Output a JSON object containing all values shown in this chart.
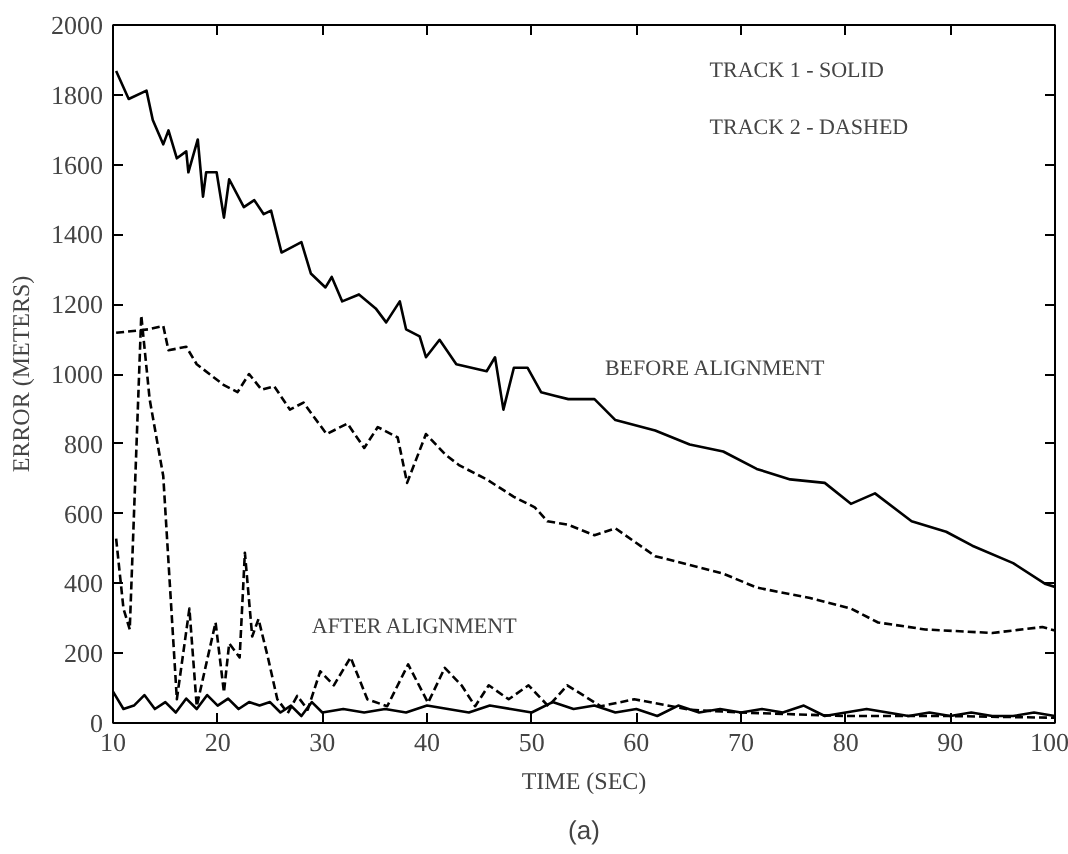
{
  "chart_data": {
    "type": "line",
    "xlabel": "TIME (SEC)",
    "ylabel": "ERROR (METERS)",
    "xlim": [
      10,
      100
    ],
    "ylim": [
      0,
      2000
    ],
    "xticks": [
      10,
      20,
      30,
      40,
      50,
      60,
      70,
      80,
      90,
      100
    ],
    "yticks": [
      0,
      200,
      400,
      600,
      800,
      1000,
      1200,
      1400,
      1600,
      1800,
      2000
    ],
    "grid": false,
    "marker": "none",
    "annotations": [
      "TRACK 1 - SOLID",
      "TRACK 2 - DASHED",
      "BEFORE ALIGNMENT",
      "AFTER ALIGNMENT",
      "(a)"
    ],
    "series": [
      {
        "color": "#000000",
        "line_style": "solid",
        "x": [
          10.3,
          11.5,
          13.2,
          13.8,
          14.8,
          15.3,
          16.1,
          17.0,
          17.2,
          18.1,
          18.6,
          18.9,
          19.9,
          20.6,
          21.1,
          22.5,
          23.5,
          24.4,
          25.1,
          26.1,
          28.0,
          28.9,
          30.3,
          30.9,
          31.9,
          33.5,
          35.1,
          36.1,
          37.4,
          38.0,
          39.3,
          39.9,
          41.2,
          42.8,
          45.7,
          46.5,
          47.3,
          48.3,
          49.6,
          50.9,
          52.2,
          53.5,
          56.0,
          58.0,
          61.8,
          65.1,
          68.3,
          71.5,
          74.7,
          78.0,
          80.5,
          82.8,
          86.3,
          89.6,
          92.1,
          96.0,
          99.1,
          100
        ],
        "values": [
          1868,
          1788,
          1812,
          1728,
          1658,
          1698,
          1618,
          1638,
          1578,
          1672,
          1508,
          1578,
          1578,
          1448,
          1558,
          1478,
          1498,
          1458,
          1468,
          1348,
          1378,
          1288,
          1248,
          1278,
          1208,
          1228,
          1188,
          1148,
          1208,
          1128,
          1108,
          1048,
          1098,
          1028,
          1008,
          1048,
          898,
          1018,
          1018,
          948,
          938,
          928,
          928,
          868,
          838,
          798,
          778,
          728,
          698,
          688,
          628,
          658,
          578,
          548,
          508,
          458,
          398,
          390
        ]
      },
      {
        "color": "#000000",
        "line_style": "dashed",
        "x": [
          10.3,
          13.4,
          14.8,
          15.3,
          17.0,
          18.0,
          20.6,
          21.9,
          23.0,
          24.2,
          25.4,
          26.9,
          28.2,
          30.4,
          32.4,
          34.0,
          35.3,
          37.2,
          38.1,
          39.9,
          41.8,
          43.1,
          45.7,
          48.3,
          50.3,
          51.5,
          53.5,
          56.0,
          58.0,
          61.8,
          68.3,
          71.5,
          76.6,
          80.5,
          83.1,
          87.6,
          94.0,
          98.8,
          100
        ],
        "values": [
          1118,
          1128,
          1138,
          1068,
          1078,
          1028,
          968,
          948,
          1000,
          955,
          965,
          898,
          918,
          828,
          858,
          788,
          848,
          818,
          688,
          828,
          768,
          738,
          698,
          648,
          618,
          578,
          568,
          538,
          558,
          478,
          428,
          388,
          358,
          328,
          288,
          268,
          258,
          275,
          265
        ]
      },
      {
        "color": "#000000",
        "line_style": "solid",
        "x": [
          10,
          11,
          12,
          13,
          14,
          15,
          16,
          17,
          18,
          19,
          20,
          21,
          22,
          23,
          24,
          25,
          26,
          27,
          28,
          29,
          30,
          32,
          34,
          36,
          38,
          40,
          42,
          44,
          46,
          48,
          50,
          52,
          54,
          56,
          58,
          60,
          62,
          64,
          66,
          68,
          70,
          72,
          74,
          76,
          78,
          80,
          82,
          84,
          86,
          88,
          90,
          92,
          94,
          96,
          98,
          100
        ],
        "values": [
          90,
          40,
          50,
          80,
          40,
          60,
          30,
          70,
          40,
          80,
          50,
          70,
          40,
          60,
          50,
          60,
          30,
          50,
          20,
          60,
          30,
          40,
          30,
          40,
          30,
          50,
          40,
          30,
          50,
          40,
          30,
          60,
          40,
          50,
          30,
          40,
          20,
          50,
          30,
          40,
          30,
          40,
          30,
          50,
          20,
          30,
          40,
          30,
          20,
          30,
          20,
          30,
          20,
          20,
          30,
          20
        ]
      },
      {
        "color": "#000000",
        "line_style": "dashed",
        "x": [
          10.3,
          11.0,
          11.6,
          12.7,
          13.5,
          14.8,
          16.1,
          17.3,
          18.0,
          19.8,
          20.6,
          21.1,
          22.1,
          22.6,
          23.3,
          23.9,
          24.8,
          25.7,
          26.7,
          27.6,
          28.6,
          29.8,
          31.1,
          32.7,
          34.3,
          36.2,
          38.2,
          40.1,
          41.7,
          43.3,
          44.6,
          45.9,
          47.8,
          49.7,
          51.6,
          53.4,
          56.6,
          59.8,
          65.1,
          70,
          80,
          90,
          100
        ],
        "values": [
          528,
          328,
          268,
          1168,
          928,
          708,
          68,
          328,
          48,
          288,
          88,
          228,
          188,
          488,
          248,
          298,
          188,
          68,
          28,
          78,
          38,
          148,
          108,
          188,
          68,
          48,
          168,
          58,
          158,
          108,
          48,
          108,
          68,
          108,
          48,
          108,
          48,
          68,
          38,
          30,
          20,
          20,
          15
        ]
      }
    ]
  }
}
